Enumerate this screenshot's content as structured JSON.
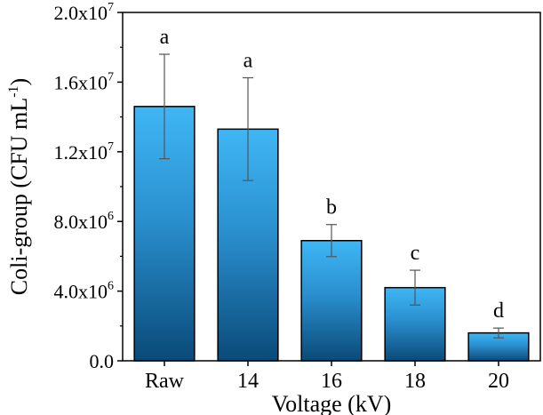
{
  "chart_data": {
    "type": "bar",
    "categories": [
      "Raw",
      "14",
      "16",
      "18",
      "20"
    ],
    "values": [
      14600000,
      13300000,
      6900000,
      4200000,
      1600000
    ],
    "errors": [
      3000000,
      2950000,
      920000,
      1000000,
      280000
    ],
    "significance_letters": [
      "a",
      "a",
      "b",
      "c",
      "d"
    ],
    "xlabel": "Voltage (kV)",
    "ylabel_main": "Coli-group (CFU mL",
    "ylabel_sup": "-1",
    "ylabel_close": ")",
    "ylim": [
      0,
      20000000
    ],
    "yticks": [
      {
        "value": 0,
        "base": "0.0",
        "exp": ""
      },
      {
        "value": 4000000,
        "base": "4.0x10",
        "exp": "6"
      },
      {
        "value": 8000000,
        "base": "8.0x10",
        "exp": "6"
      },
      {
        "value": 12000000,
        "base": "1.2x10",
        "exp": "7"
      },
      {
        "value": 16000000,
        "base": "1.6x10",
        "exp": "7"
      },
      {
        "value": 20000000,
        "base": "2.0x10",
        "exp": "7"
      }
    ],
    "grid": false,
    "legend": "none",
    "colors": {
      "bar_top": "#3fb6f5",
      "bar_bottom": "#0a4a78",
      "outline": "#000000",
      "error": "#555555"
    }
  }
}
